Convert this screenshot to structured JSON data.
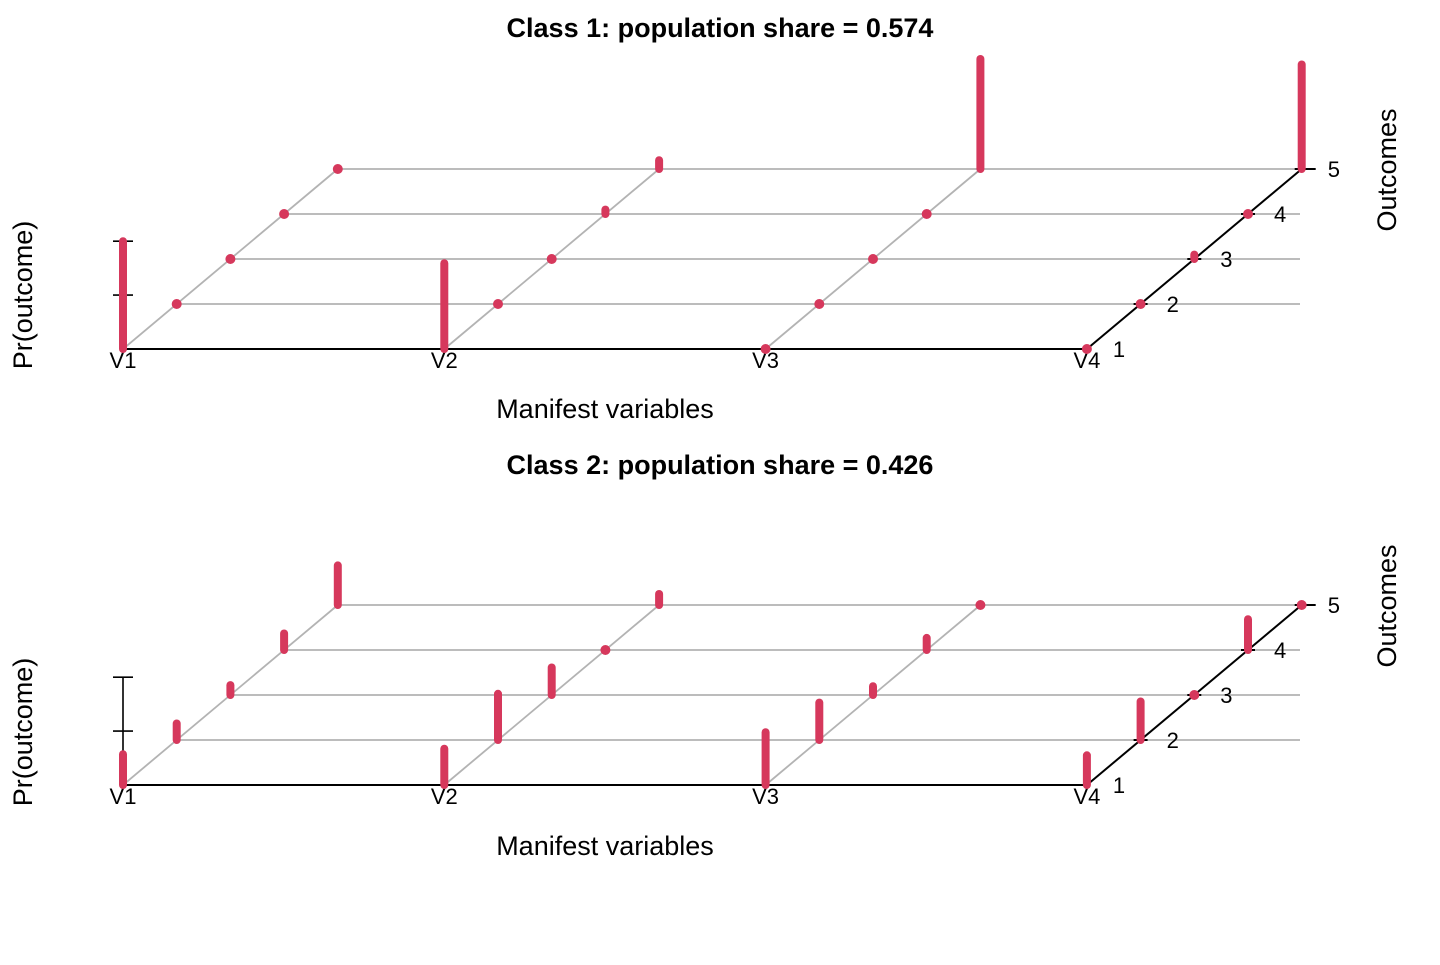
{
  "chart_data": [
    {
      "type": "bar",
      "title": "Class 1: population share = 0.574",
      "xlabel": "Manifest variables",
      "ylabel": "Pr(outcome)",
      "zlabel": "Outcomes",
      "variables": [
        "V1",
        "V2",
        "V3",
        "V4"
      ],
      "outcomes": [
        "1",
        "2",
        "3",
        "4",
        "5"
      ],
      "color": "#d6385c",
      "series": [
        {
          "name": "V1",
          "values": [
            0.98,
            0.0,
            0.0,
            0.0,
            0.0
          ]
        },
        {
          "name": "V2",
          "values": [
            0.78,
            0.0,
            0.0,
            0.04,
            0.08
          ]
        },
        {
          "name": "V3",
          "values": [
            0.0,
            0.0,
            0.0,
            0.0,
            1.0
          ]
        },
        {
          "name": "V4",
          "values": [
            0.0,
            0.0,
            0.04,
            0.0,
            0.95
          ]
        }
      ]
    },
    {
      "type": "bar",
      "title": "Class 2: population share = 0.426",
      "xlabel": "Manifest variables",
      "ylabel": "Pr(outcome)",
      "zlabel": "Outcomes",
      "variables": [
        "V1",
        "V2",
        "V3",
        "V4"
      ],
      "outcomes": [
        "1",
        "2",
        "3",
        "4",
        "5"
      ],
      "color": "#d6385c",
      "series": [
        {
          "name": "V1",
          "values": [
            0.28,
            0.15,
            0.09,
            0.15,
            0.36
          ]
        },
        {
          "name": "V2",
          "values": [
            0.33,
            0.42,
            0.25,
            0.0,
            0.1
          ]
        },
        {
          "name": "V3",
          "values": [
            0.48,
            0.34,
            0.08,
            0.11,
            0.0
          ]
        },
        {
          "name": "V4",
          "values": [
            0.27,
            0.35,
            0.0,
            0.28,
            0.0
          ]
        }
      ]
    }
  ]
}
